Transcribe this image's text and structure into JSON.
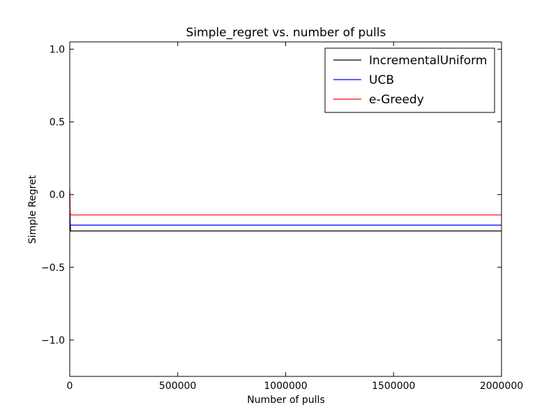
{
  "chart_data": {
    "type": "line",
    "title": "Simple_regret vs. number of pulls",
    "xlabel": "Number of pulls",
    "ylabel": "Simple Regret",
    "xlim": [
      0,
      2000000
    ],
    "ylim": [
      -1.25,
      1.05
    ],
    "xticks": [
      0,
      500000,
      1000000,
      1500000,
      2000000
    ],
    "xtick_labels": [
      "0",
      "500000",
      "1000000",
      "1500000",
      "2000000"
    ],
    "yticks": [
      -1.0,
      -0.5,
      0.0,
      0.5,
      1.0
    ],
    "ytick_labels": [
      "−1.0",
      "−0.5",
      "0.0",
      "0.5",
      "1.0"
    ],
    "grid": false,
    "legend_position": "top-right",
    "series": [
      {
        "name": "IncrementalUniform",
        "color": "#000000",
        "x": [
          0,
          2000,
          4000,
          2000000
        ],
        "y": [
          0.0,
          -0.2,
          -0.25,
          -0.25
        ]
      },
      {
        "name": "UCB",
        "color": "#0000ff",
        "x": [
          0,
          2000,
          4000,
          2000000
        ],
        "y": [
          0.02,
          -0.2,
          -0.21,
          -0.21
        ]
      },
      {
        "name": "e-Greedy",
        "color": "#ff0000",
        "x": [
          0,
          2000,
          4000,
          2000000
        ],
        "y": [
          0.05,
          -0.12,
          -0.14,
          -0.14
        ]
      }
    ]
  }
}
